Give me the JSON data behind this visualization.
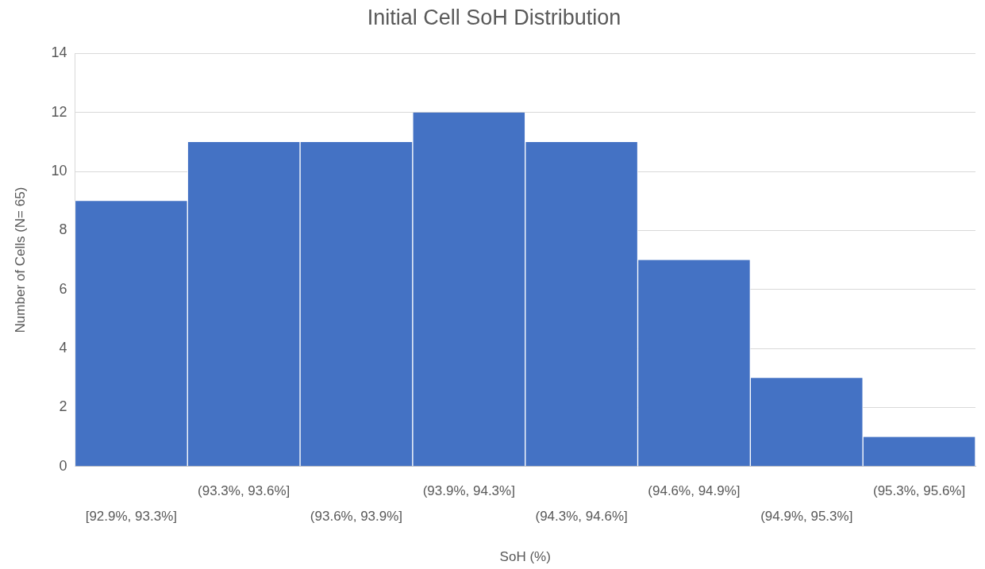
{
  "chart_data": {
    "type": "bar",
    "title": "Initial Cell SoH Distribution",
    "xlabel": "SoH (%)",
    "ylabel": "Number of Cells (N= 65)",
    "categories": [
      "[92.9%, 93.3%]",
      "(93.3%, 93.6%]",
      "(93.6%, 93.9%]",
      "(93.9%, 94.3%]",
      "(94.3%, 94.6%]",
      "(94.6%, 94.9%]",
      "(94.9%, 95.3%]",
      "(95.3%, 95.6%]"
    ],
    "values": [
      9,
      11,
      11,
      12,
      11,
      7,
      3,
      1
    ],
    "color": "#4472c4",
    "ylim": [
      0,
      14
    ],
    "yticks": [
      0,
      2,
      4,
      6,
      8,
      10,
      12,
      14
    ],
    "grid": "y"
  }
}
